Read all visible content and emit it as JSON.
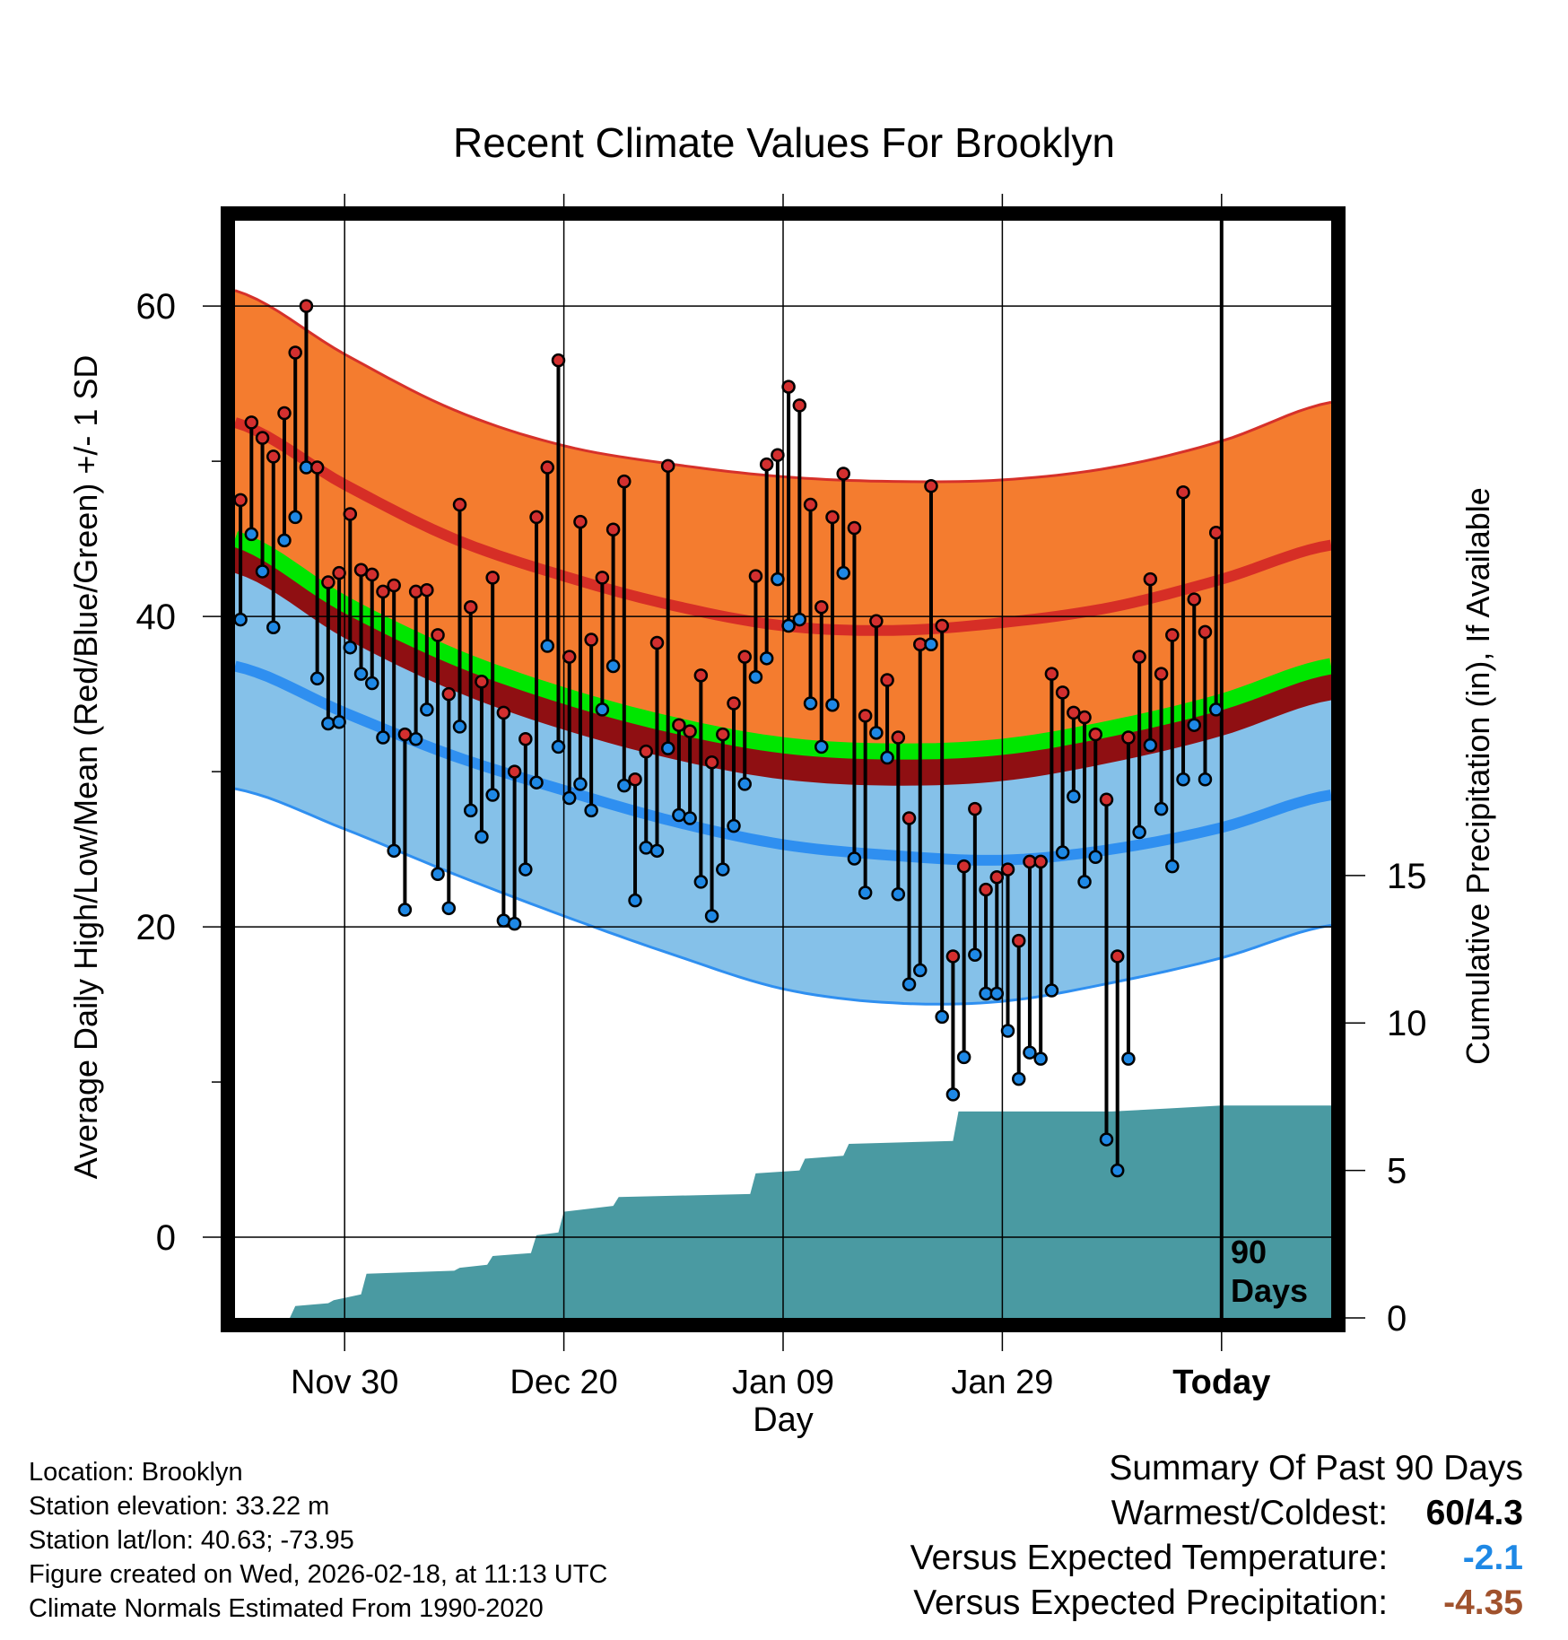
{
  "chart_data": {
    "type": "line",
    "title": "Recent Climate Values For Brooklyn",
    "xlabel": "Day",
    "ylabel": "Average Daily High/Low/Mean (Red/Blue/Green) +/- 1 SD",
    "y2label": "Cumulative Precipitation (in), If Available",
    "ylim": [
      -5.2,
      65.5
    ],
    "y2lim": [
      0,
      37.2
    ],
    "xlim": [
      -10,
      90
    ],
    "y_ticks": [
      "0",
      "20",
      "40",
      "60"
    ],
    "y_tick_values": [
      0,
      20,
      40,
      60
    ],
    "y2_ticks": [
      "0",
      "5",
      "10",
      "15"
    ],
    "y2_tick_values": [
      0,
      5,
      10,
      15
    ],
    "x_ticks": [
      "Nov 30",
      "Dec 20",
      "Jan 09",
      "Jan 29",
      "Today"
    ],
    "x_tick_values": [
      0,
      20,
      40,
      60,
      80
    ],
    "today_label": "90\nDays",
    "normals": {
      "day": [
        -10,
        0,
        10,
        20,
        30,
        40,
        50,
        60,
        70,
        80,
        90
      ],
      "high_mean": [
        52.5,
        48.5,
        45.0,
        42.6,
        40.7,
        39.4,
        39.1,
        39.6,
        40.6,
        42.4,
        44.6
      ],
      "high_upper": [
        61.0,
        56.9,
        53.3,
        51.0,
        49.8,
        49.0,
        48.7,
        48.8,
        49.6,
        51.3,
        53.8
      ],
      "mean_line": [
        45.0,
        40.8,
        37.4,
        34.9,
        33.0,
        31.7,
        31.3,
        31.6,
        32.8,
        34.5,
        36.8
      ],
      "low_mean": [
        36.8,
        33.8,
        31.0,
        28.8,
        26.8,
        25.3,
        24.6,
        24.3,
        25.0,
        26.4,
        28.5
      ],
      "low_lower": [
        28.9,
        26.3,
        23.4,
        20.7,
        18.2,
        16.0,
        15.1,
        15.2,
        16.4,
        18.0,
        20.1
      ]
    },
    "daily_high": [
      47.5,
      52.5,
      51.5,
      50.3,
      53.1,
      57.0,
      60.0,
      49.6,
      42.2,
      42.8,
      46.6,
      43.0,
      42.7,
      41.6,
      42.0,
      32.4,
      41.6,
      41.7,
      38.8,
      35.0,
      47.2,
      40.6,
      35.8,
      42.5,
      33.8,
      30.0,
      32.1,
      46.4,
      49.6,
      56.5,
      37.4,
      46.1,
      38.5,
      42.5,
      45.6,
      48.7,
      29.5,
      31.3,
      38.3,
      49.7,
      33.0,
      32.6,
      36.2,
      30.6,
      32.4,
      34.4,
      37.4,
      42.6,
      49.8,
      50.4,
      54.8,
      53.6,
      47.2,
      40.6,
      46.4,
      49.2,
      45.7,
      33.6,
      39.7,
      35.9,
      32.2,
      27.0,
      38.2,
      48.4,
      39.4,
      18.1,
      23.9,
      27.6,
      22.4,
      23.2,
      23.7,
      19.1,
      24.2,
      24.2,
      36.3,
      35.1,
      33.8,
      33.5,
      32.4,
      28.2,
      18.1,
      32.2,
      37.4,
      42.4,
      36.3,
      38.8,
      48.0,
      41.1,
      39.0,
      45.4
    ],
    "daily_low": [
      39.8,
      45.3,
      42.9,
      39.3,
      44.9,
      46.4,
      49.6,
      36.0,
      33.1,
      33.2,
      38.0,
      36.3,
      35.7,
      32.2,
      24.9,
      21.1,
      32.1,
      34.0,
      23.4,
      21.2,
      32.9,
      27.5,
      25.8,
      28.5,
      20.4,
      20.2,
      23.7,
      29.3,
      38.1,
      31.6,
      28.3,
      29.2,
      27.5,
      34.0,
      36.8,
      29.1,
      21.7,
      25.1,
      24.9,
      31.5,
      27.2,
      27.0,
      22.9,
      20.7,
      23.7,
      26.5,
      29.2,
      36.1,
      37.3,
      42.4,
      39.4,
      39.8,
      34.4,
      31.6,
      34.3,
      42.8,
      24.4,
      22.2,
      32.5,
      30.9,
      22.1,
      16.3,
      17.2,
      38.2,
      14.2,
      9.2,
      11.6,
      18.2,
      15.7,
      15.7,
      13.3,
      10.2,
      11.9,
      11.5,
      15.9,
      24.8,
      28.4,
      22.9,
      24.5,
      6.3,
      4.3,
      11.5,
      26.1,
      31.7,
      27.6,
      23.9,
      29.5,
      33.0,
      29.5,
      34.0
    ],
    "precip_day": [
      -10,
      -5,
      -4.5,
      -1.5,
      -1,
      1.5,
      2,
      10,
      10.5,
      13,
      13.5,
      17,
      17.5,
      19.5,
      20,
      24.5,
      25,
      37,
      37.5,
      41.5,
      42,
      45.5,
      46,
      55.5,
      56,
      70,
      75,
      80,
      90
    ],
    "precip_cum": [
      0,
      0,
      0.4,
      0.5,
      0.6,
      0.8,
      1.5,
      1.6,
      1.7,
      1.8,
      2.1,
      2.2,
      2.8,
      2.9,
      3.6,
      3.8,
      4.1,
      4.2,
      4.9,
      5.0,
      5.4,
      5.5,
      5.9,
      6.0,
      7.0,
      7.0,
      7.1,
      7.2,
      7.2
    ],
    "colors": {
      "high_band": "#f47c2f",
      "high_mean": "#d62e26",
      "high_upper_edge": "#d6312a",
      "mean_band": "#00e600",
      "dark_band": "#8f0f12",
      "low_band": "#85c1e9",
      "low_mean": "#2f8ff0",
      "low_lower_edge": "#2f8ff0",
      "precip": "#4a9aa2",
      "high_marker": "#d32f2f",
      "low_marker": "#1e88e5"
    }
  },
  "footer": {
    "location": "Location: Brooklyn",
    "elevation": "Station elevation: 33.22 m",
    "latlon": "Station lat/lon: 40.63; -73.95",
    "created": "Figure created on Wed, 2026-02-18, at 11:13 UTC",
    "normals": "Climate Normals Estimated From 1990-2020"
  },
  "summary": {
    "title": "Summary Of Past 90 Days",
    "warmest_label": "Warmest/Coldest:",
    "warmest_value": "60/4.3",
    "temp_label": "Versus Expected Temperature:",
    "temp_value": "-2.1",
    "temp_color": "#1e88e5",
    "precip_label": "Versus Expected Precipitation:",
    "precip_value": "-4.35",
    "precip_color": "#a0522d"
  }
}
